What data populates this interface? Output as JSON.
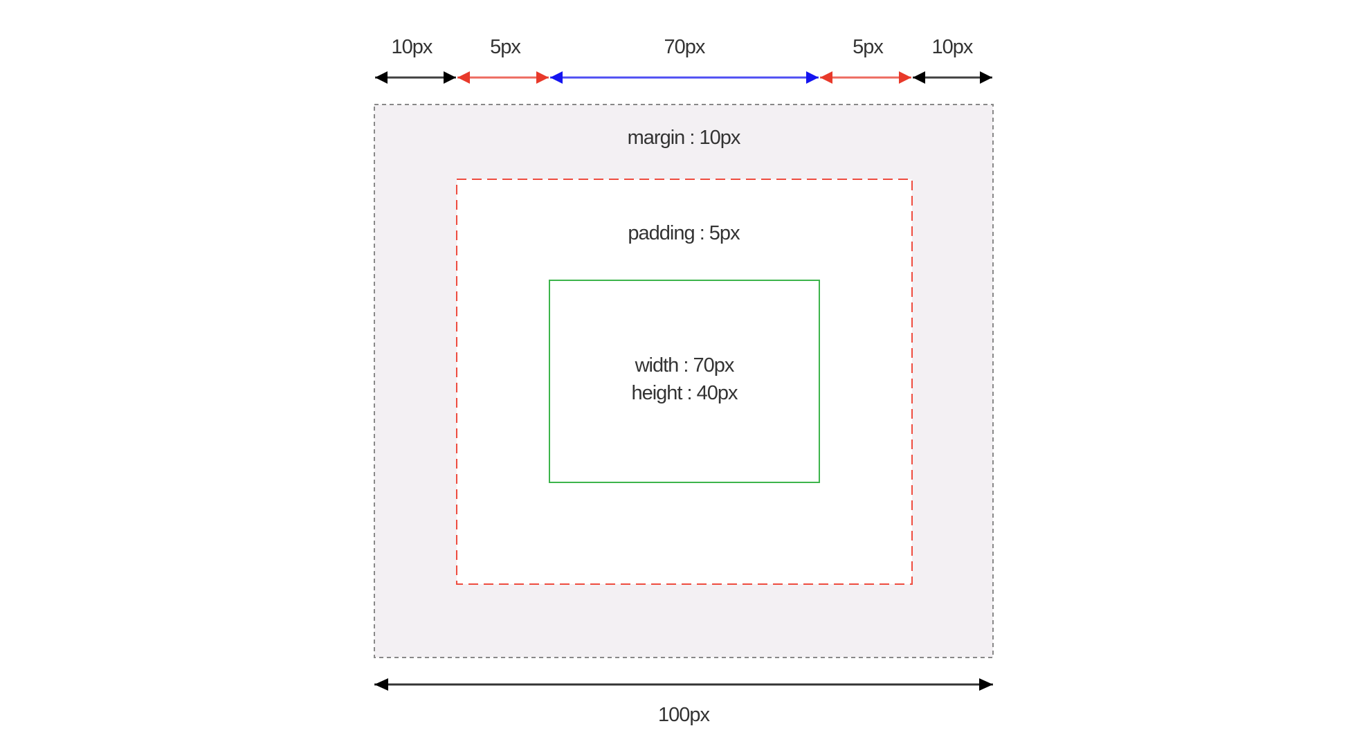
{
  "top_dimensions": [
    {
      "label": "10px",
      "color": "#000000"
    },
    {
      "label": "5px",
      "color": "#e8392a"
    },
    {
      "label": "70px",
      "color": "#1414f0"
    },
    {
      "label": "5px",
      "color": "#e8392a"
    },
    {
      "label": "10px",
      "color": "#000000"
    }
  ],
  "boxes": {
    "margin": {
      "label": "margin : 10px",
      "fill": "#f3f0f3",
      "border": "#888888"
    },
    "padding": {
      "label": "padding : 5px",
      "fill": "#ffffff",
      "border": "#ee4b3e"
    },
    "content": {
      "width_label": "width : 70px",
      "height_label": "height : 40px",
      "border": "#3cb44b"
    }
  },
  "total_width": {
    "label": "100px",
    "color": "#000000"
  }
}
